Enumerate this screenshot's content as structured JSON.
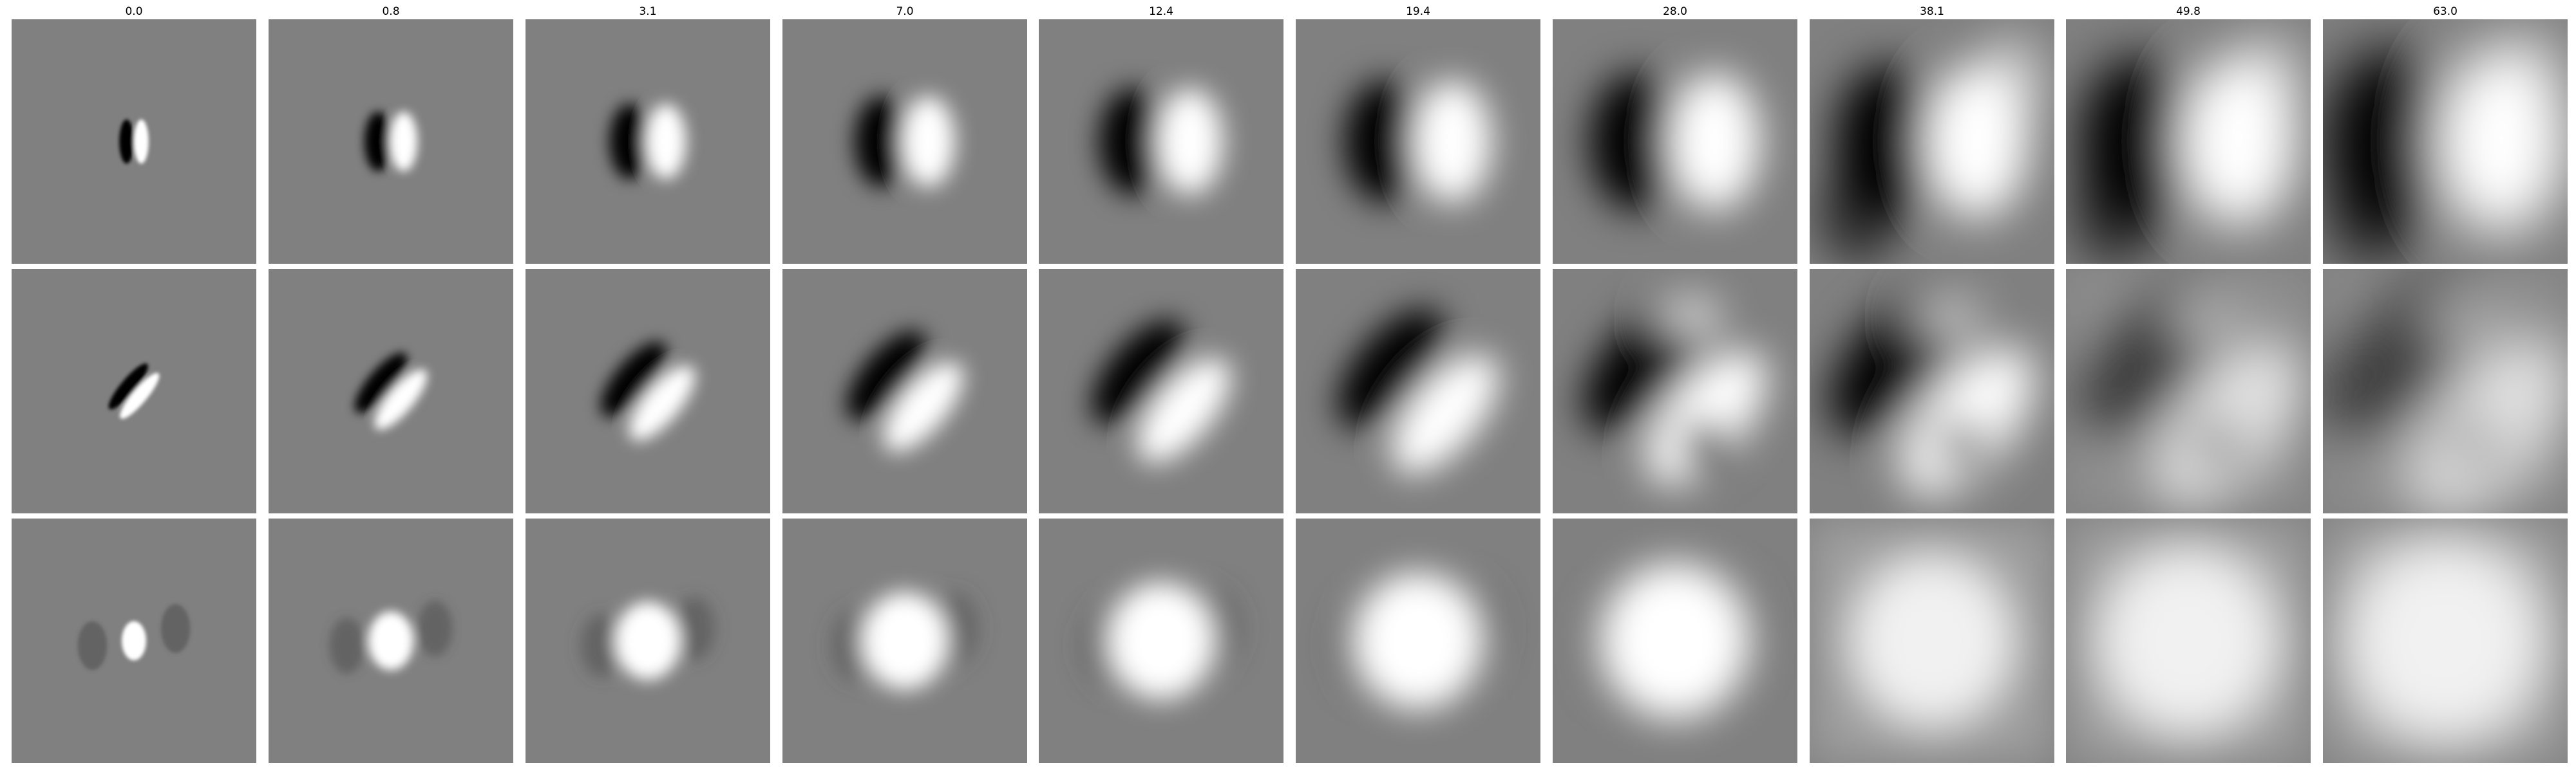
{
  "columns": [
    "0.0",
    "0.8",
    "3.1",
    "7.0",
    "12.4",
    "19.4",
    "28.0",
    "38.1",
    "49.8",
    "63.0"
  ],
  "rows": [
    {
      "pattern": "vertical-dipole",
      "colors": {
        "dark": "#000000",
        "light": "#ffffff",
        "background": "#808080"
      }
    },
    {
      "pattern": "diagonal-dipole",
      "colors": {
        "dark": "#000000",
        "light": "#ffffff",
        "background": "#808080"
      }
    },
    {
      "pattern": "bright-center-blob",
      "colors": {
        "dark": "#4a4a4a",
        "light": "#ffffff",
        "background": "#808080"
      }
    }
  ]
}
